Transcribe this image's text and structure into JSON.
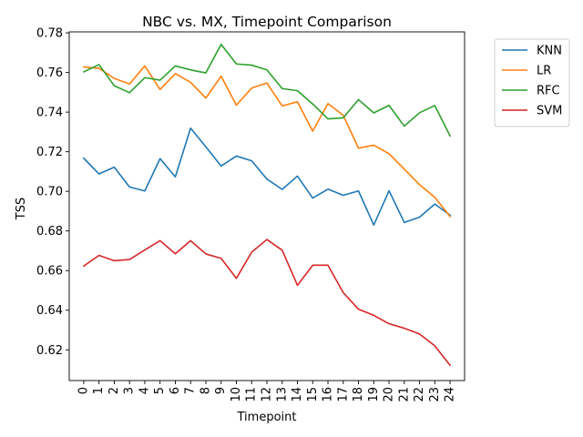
{
  "chart_data": {
    "type": "line",
    "title": "NBC vs. MX, Timepoint Comparison",
    "xlabel": "Timepoint",
    "ylabel": "TSS",
    "x": [
      0,
      1,
      2,
      3,
      4,
      5,
      6,
      7,
      8,
      9,
      10,
      11,
      12,
      13,
      14,
      15,
      16,
      17,
      18,
      19,
      20,
      21,
      22,
      23,
      24
    ],
    "x_tick_labels": [
      "0",
      "1",
      "2",
      "3",
      "4",
      "5",
      "6",
      "7",
      "8",
      "9",
      "10",
      "11",
      "12",
      "13",
      "14",
      "15",
      "16",
      "17",
      "18",
      "19",
      "20",
      "21",
      "22",
      "23",
      "24"
    ],
    "ylim": [
      0.6045,
      0.7805
    ],
    "y_ticks": [
      0.62,
      0.64,
      0.66,
      0.68,
      0.7,
      0.72,
      0.74,
      0.76,
      0.78
    ],
    "y_tick_labels": [
      "0.62",
      "0.64",
      "0.66",
      "0.68",
      "0.70",
      "0.72",
      "0.74",
      "0.76",
      "0.78"
    ],
    "grid": false,
    "legend_position": "outside-top-right",
    "series": [
      {
        "name": "KNN",
        "color": "#1f77b4",
        "values": [
          0.7167,
          0.7088,
          0.7122,
          0.7022,
          0.7002,
          0.7165,
          0.7073,
          0.7319,
          0.7225,
          0.7128,
          0.7178,
          0.7154,
          0.7062,
          0.701,
          0.7077,
          0.6966,
          0.7011,
          0.698,
          0.7002,
          0.683,
          0.7003,
          0.6843,
          0.687,
          0.6936,
          0.688
        ]
      },
      {
        "name": "LR",
        "color": "#ff7f0e",
        "values": [
          0.7628,
          0.7621,
          0.757,
          0.7542,
          0.7633,
          0.7514,
          0.7594,
          0.755,
          0.7471,
          0.7581,
          0.7435,
          0.7521,
          0.7547,
          0.7431,
          0.7452,
          0.7304,
          0.7443,
          0.7384,
          0.7218,
          0.7233,
          0.719,
          0.7112,
          0.7034,
          0.697,
          0.6873
        ]
      },
      {
        "name": "RFC",
        "color": "#2ca02c",
        "values": [
          0.7603,
          0.764,
          0.7533,
          0.7498,
          0.7574,
          0.7561,
          0.7633,
          0.7613,
          0.7598,
          0.7742,
          0.7643,
          0.7637,
          0.7613,
          0.7519,
          0.7508,
          0.7441,
          0.7366,
          0.7371,
          0.7463,
          0.7396,
          0.7434,
          0.7329,
          0.7397,
          0.7433,
          0.728
        ]
      },
      {
        "name": "SVM",
        "color": "#d62728",
        "values": [
          0.6623,
          0.6677,
          0.665,
          0.6656,
          0.6704,
          0.6751,
          0.6685,
          0.6751,
          0.6684,
          0.6662,
          0.6561,
          0.6693,
          0.6757,
          0.6703,
          0.6526,
          0.6627,
          0.6627,
          0.6489,
          0.6405,
          0.6374,
          0.6332,
          0.6309,
          0.628,
          0.622,
          0.6122
        ]
      }
    ]
  }
}
